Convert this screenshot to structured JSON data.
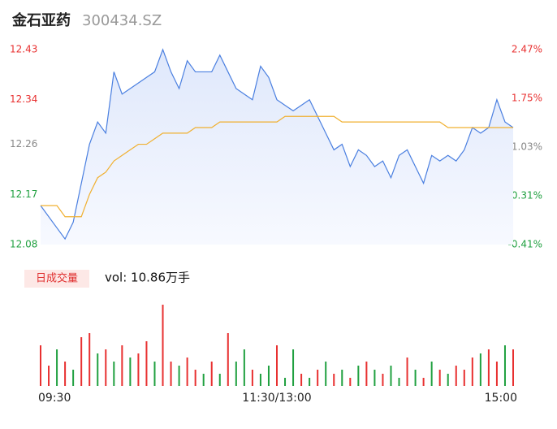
{
  "title": "金石亚药",
  "code": "300434.SZ",
  "chart_data": {
    "type": "line",
    "x": [
      0,
      1,
      2,
      3,
      4,
      5,
      6,
      7,
      8,
      9,
      10,
      11,
      12,
      13,
      14,
      15,
      16,
      17,
      18,
      19,
      20,
      21,
      22,
      23,
      24,
      25,
      26,
      27,
      28,
      29,
      30,
      31,
      32,
      33,
      34,
      35,
      36,
      37,
      38,
      39,
      40,
      41,
      42,
      43,
      44,
      45,
      46,
      47,
      48,
      49,
      50,
      51,
      52,
      53,
      54,
      55,
      56,
      57,
      58
    ],
    "xlim": [
      0,
      58
    ],
    "xticks": [
      {
        "value": 0,
        "label": "09:30"
      },
      {
        "value": 29,
        "label": "11:30/13:00"
      },
      {
        "value": 58,
        "label": "15:00"
      }
    ],
    "ylim": [
      12.08,
      12.43
    ],
    "yticks": [
      12.08,
      12.17,
      12.26,
      12.34,
      12.43
    ],
    "y2lim": [
      -0.41,
      2.47
    ],
    "y2ticks": [
      {
        "value": -0.41,
        "label": "-0.41%"
      },
      {
        "value": 0.31,
        "label": "0.31%"
      },
      {
        "value": 1.03,
        "label": "1.03%"
      },
      {
        "value": 1.75,
        "label": "1.75%"
      },
      {
        "value": 2.47,
        "label": "2.47%"
      }
    ],
    "series": [
      {
        "color": "#4a7fe0",
        "values": [
          12.15,
          12.13,
          12.11,
          12.09,
          12.12,
          12.19,
          12.26,
          12.3,
          12.28,
          12.39,
          12.35,
          12.36,
          12.37,
          12.38,
          12.39,
          12.43,
          12.39,
          12.36,
          12.41,
          12.39,
          12.39,
          12.39,
          12.42,
          12.39,
          12.36,
          12.35,
          12.34,
          12.4,
          12.38,
          12.34,
          12.33,
          12.32,
          12.33,
          12.34,
          12.31,
          12.28,
          12.25,
          12.26,
          12.22,
          12.25,
          12.24,
          12.22,
          12.23,
          12.2,
          12.24,
          12.25,
          12.22,
          12.19,
          12.24,
          12.23,
          12.24,
          12.23,
          12.25,
          12.29,
          12.28,
          12.29,
          12.34,
          12.3,
          12.29
        ]
      },
      {
        "color": "#f0b030",
        "values": [
          12.15,
          12.15,
          12.15,
          12.13,
          12.13,
          12.13,
          12.17,
          12.2,
          12.21,
          12.23,
          12.24,
          12.25,
          12.26,
          12.26,
          12.27,
          12.28,
          12.28,
          12.28,
          12.28,
          12.29,
          12.29,
          12.29,
          12.3,
          12.3,
          12.3,
          12.3,
          12.3,
          12.3,
          12.3,
          12.3,
          12.31,
          12.31,
          12.31,
          12.31,
          12.31,
          12.31,
          12.31,
          12.3,
          12.3,
          12.3,
          12.3,
          12.3,
          12.3,
          12.3,
          12.3,
          12.3,
          12.3,
          12.3,
          12.3,
          12.3,
          12.29,
          12.29,
          12.29,
          12.29,
          12.29,
          12.29,
          12.29,
          12.29,
          12.29
        ]
      }
    ],
    "volume": {
      "label": "日成交量",
      "summary": "vol: 10.86万手",
      "values": [
        50,
        25,
        45,
        30,
        20,
        60,
        65,
        40,
        45,
        30,
        50,
        35,
        40,
        55,
        30,
        100,
        30,
        25,
        35,
        20,
        15,
        30,
        15,
        65,
        30,
        45,
        20,
        15,
        25,
        50,
        10,
        45,
        15,
        10,
        20,
        30,
        15,
        20,
        10,
        25,
        30,
        20,
        15,
        25,
        10,
        35,
        20,
        10,
        30,
        20,
        15,
        25,
        20,
        35,
        40,
        45,
        30,
        50,
        45
      ],
      "colors": [
        "#e83030",
        "#e83030",
        "#20a040",
        "#e83030",
        "#20a040",
        "#e83030",
        "#e83030",
        "#20a040",
        "#e83030",
        "#20a040",
        "#e83030",
        "#20a040",
        "#e83030",
        "#e83030",
        "#20a040",
        "#e83030",
        "#e83030",
        "#20a040",
        "#e83030",
        "#e83030",
        "#20a040",
        "#e83030",
        "#20a040",
        "#e83030",
        "#20a040",
        "#20a040",
        "#e83030",
        "#20a040",
        "#20a040",
        "#e83030",
        "#20a040",
        "#20a040",
        "#e83030",
        "#20a040",
        "#e83030",
        "#20a040",
        "#e83030",
        "#20a040",
        "#e83030",
        "#20a040",
        "#e83030",
        "#20a040",
        "#e83030",
        "#20a040",
        "#20a040",
        "#e83030",
        "#20a040",
        "#e83030",
        "#20a040",
        "#e83030",
        "#20a040",
        "#e83030",
        "#e83030",
        "#e83030",
        "#20a040",
        "#e83030",
        "#e83030",
        "#20a040",
        "#e83030"
      ]
    }
  }
}
